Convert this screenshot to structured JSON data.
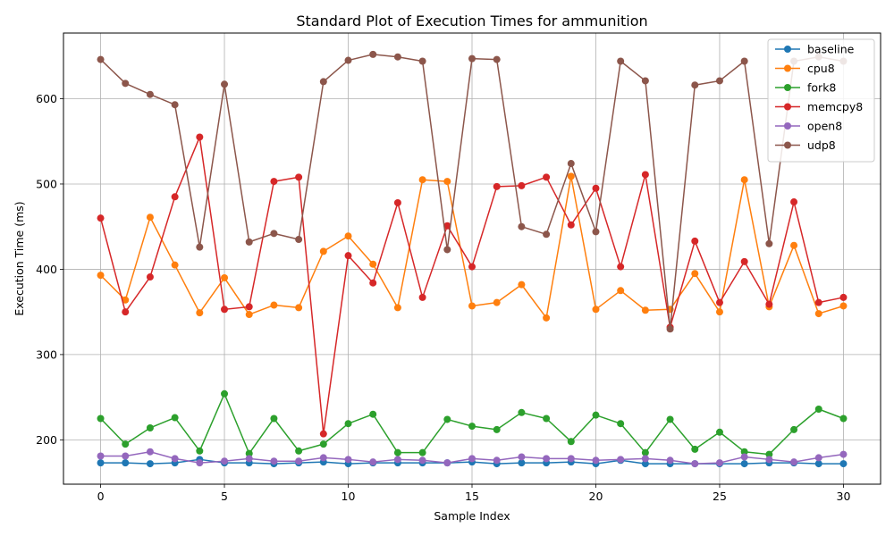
{
  "chart_data": {
    "type": "line",
    "title": "Standard Plot of Execution Times for ammunition",
    "xlabel": "Sample Index",
    "ylabel": "Execution Time (ms)",
    "xlim": [
      -1.5,
      31.5
    ],
    "ylim": [
      148,
      677
    ],
    "xticks": [
      0,
      5,
      10,
      15,
      20,
      25,
      30
    ],
    "yticks": [
      200,
      300,
      400,
      500,
      600
    ],
    "grid": true,
    "legend_position": "top-right",
    "x": [
      0,
      1,
      2,
      3,
      4,
      5,
      6,
      7,
      8,
      9,
      10,
      11,
      12,
      13,
      14,
      15,
      16,
      17,
      18,
      19,
      20,
      21,
      22,
      23,
      24,
      25,
      26,
      27,
      28,
      29,
      30
    ],
    "series": [
      {
        "name": "baseline",
        "color": "#1f77b4",
        "values": [
          173,
          173,
          172,
          173,
          177,
          173,
          173,
          172,
          173,
          174,
          172,
          173,
          173,
          173,
          173,
          174,
          172,
          173,
          173,
          174,
          172,
          176,
          172,
          172,
          172,
          172,
          172,
          173,
          173,
          172,
          172
        ]
      },
      {
        "name": "cpu8",
        "color": "#ff7f0e",
        "values": [
          393,
          364,
          461,
          405,
          349,
          390,
          347,
          358,
          355,
          421,
          439,
          406,
          355,
          505,
          503,
          357,
          361,
          382,
          343,
          509,
          353,
          375,
          352,
          353,
          395,
          350,
          505,
          356,
          428,
          348,
          357
        ]
      },
      {
        "name": "fork8",
        "color": "#2ca02c",
        "values": [
          225,
          195,
          214,
          226,
          187,
          254,
          184,
          225,
          187,
          195,
          219,
          230,
          185,
          185,
          224,
          216,
          212,
          232,
          225,
          198,
          229,
          219,
          185,
          224,
          189,
          209,
          186,
          183,
          212,
          236,
          225
        ]
      },
      {
        "name": "memcpy8",
        "color": "#d62728",
        "values": [
          460,
          350,
          391,
          485,
          555,
          353,
          356,
          503,
          508,
          207,
          416,
          384,
          478,
          367,
          451,
          403,
          497,
          498,
          508,
          452,
          495,
          403,
          511,
          332,
          433,
          361,
          409,
          359,
          479,
          361,
          367
        ]
      },
      {
        "name": "open8",
        "color": "#9467bd",
        "values": [
          181,
          181,
          186,
          178,
          173,
          175,
          178,
          175,
          175,
          179,
          177,
          174,
          177,
          176,
          173,
          178,
          176,
          180,
          178,
          178,
          176,
          177,
          178,
          176,
          172,
          173,
          180,
          177,
          174,
          179,
          183
        ]
      },
      {
        "name": "udp8",
        "color": "#8c564b",
        "values": [
          646,
          618,
          605,
          593,
          426,
          617,
          432,
          442,
          435,
          620,
          645,
          652,
          649,
          644,
          423,
          647,
          646,
          450,
          441,
          524,
          444,
          644,
          621,
          330,
          616,
          621,
          644,
          430,
          644,
          649,
          644
        ]
      }
    ]
  }
}
